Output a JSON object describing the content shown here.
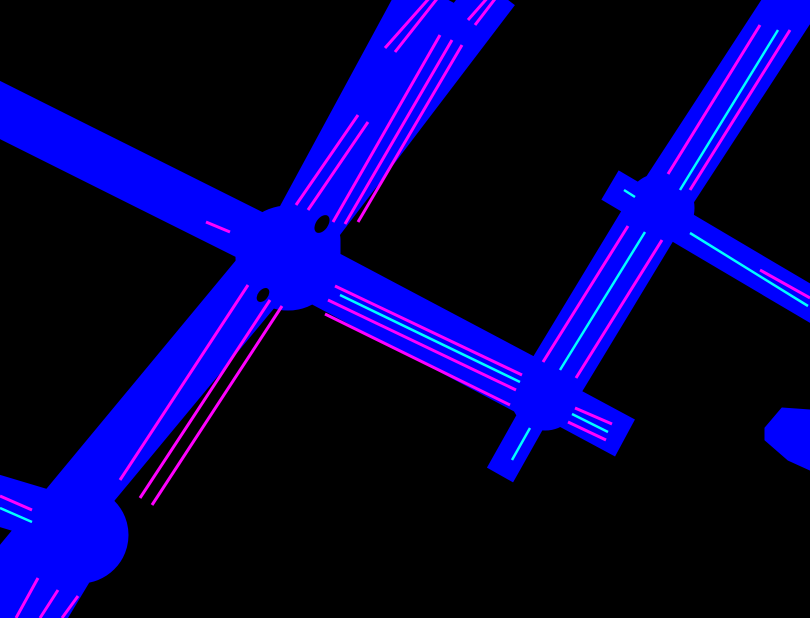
{
  "map": {
    "background_color": "#000000",
    "road_color": "#0000ff",
    "lane_line_color": "#ff00ff",
    "center_line_color": "#00ffff",
    "visible_text": []
  }
}
